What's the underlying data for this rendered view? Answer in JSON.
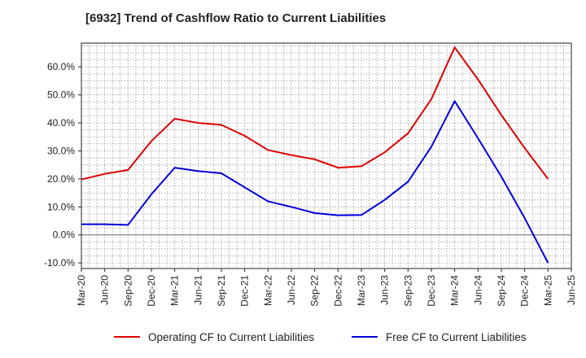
{
  "title": "[6932]  Trend of Cashflow Ratio to Current Liabilities",
  "chart_data": {
    "type": "line",
    "title": "[6932]  Trend of Cashflow Ratio to Current Liabilities",
    "xlabel": "",
    "ylabel": "",
    "x": [
      "Mar-20",
      "Jun-20",
      "Sep-20",
      "Dec-20",
      "Mar-21",
      "Jun-21",
      "Sep-21",
      "Dec-21",
      "Mar-22",
      "Jun-22",
      "Sep-22",
      "Dec-22",
      "Mar-23",
      "Jun-23",
      "Sep-23",
      "Dec-23",
      "Mar-24",
      "Jun-24",
      "Sep-24",
      "Dec-24",
      "Mar-25",
      "Jun-25"
    ],
    "y_ticks": [
      "-10.0%",
      "0.0%",
      "10.0%",
      "20.0%",
      "30.0%",
      "40.0%",
      "50.0%",
      "60.0%"
    ],
    "y_tick_values": [
      -10,
      0,
      10,
      20,
      30,
      40,
      50,
      60
    ],
    "ylim": [
      -12,
      68.5
    ],
    "grid": true,
    "legend_position": "bottom",
    "series": [
      {
        "name": "Operating CF to Current Liabilities",
        "color": "#dd0000",
        "values": [
          19.8,
          21.8,
          23.2,
          33.5,
          41.5,
          40.0,
          39.3,
          35.4,
          30.3,
          28.5,
          27.0,
          24.0,
          24.5,
          29.5,
          36.3,
          48.5,
          67.0,
          55.5,
          42.8,
          31.0,
          20.0,
          null
        ]
      },
      {
        "name": "Free CF to Current Liabilities",
        "color": "#0000dd",
        "values": [
          3.8,
          3.8,
          3.6,
          14.5,
          24.0,
          22.8,
          22.0,
          17.0,
          12.0,
          10.0,
          7.8,
          7.0,
          7.1,
          12.5,
          19.0,
          31.5,
          47.8,
          34.5,
          20.8,
          6.0,
          -10.0,
          null
        ]
      }
    ]
  }
}
